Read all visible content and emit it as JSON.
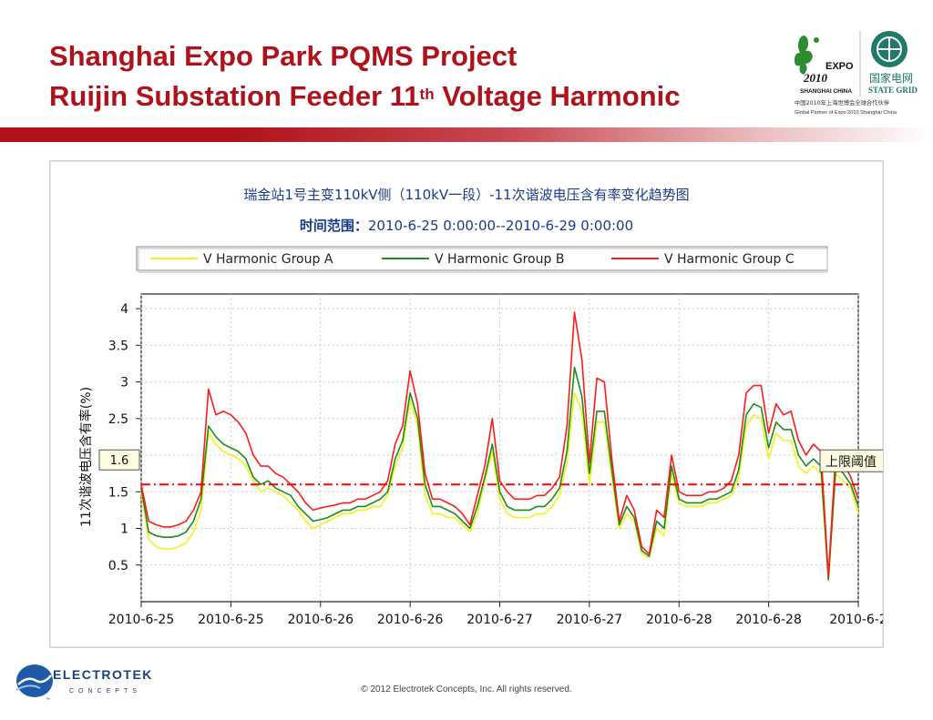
{
  "slide": {
    "title_line1": "Shanghai Expo Park PQMS Project",
    "title_line2_pre": "Ruijin Substation Feeder 11",
    "title_line2_sup": "th",
    "title_line2_post": " Voltage Harmonic",
    "footer": "© 2012 Electrotek Concepts,  Inc. All rights reserved."
  },
  "logos": {
    "expo_word": "EXPO",
    "expo_year": "2010",
    "expo_city": "SHANGHAI CHINA",
    "state_grid_cn": "国家电网",
    "state_grid_en": "STATE GRID",
    "partner_cn": "中国2010年上海世博会全球合作伙伴",
    "partner_en": "Global Partner of Expo 2010 Shanghai China",
    "electrotek_name": "ELECTROTEK",
    "electrotek_sub": "CONCEPTS",
    "electrotek_tm": "™"
  },
  "colors": {
    "title_red": "#b0121b",
    "series_a": "#f2f21a",
    "series_b": "#1c8c1c",
    "series_c": "#ff1a1a",
    "threshold": "#ff0000"
  },
  "chart_data": {
    "type": "line",
    "title": "瑞金站1号主变110kV侧（110kV一段）-11次谐波电压含有率变化趋势图",
    "subtitle_label": "时间范围：",
    "subtitle_value": "2010-6-25 0:00:00--2010-6-29 0:00:00",
    "ylabel": "11次谐波电压含有率(%)",
    "xlabel": "",
    "ylim": [
      0,
      4.2
    ],
    "xlim": [
      0,
      96
    ],
    "yticks": [
      0.5,
      1,
      1.5,
      2,
      2.5,
      3,
      3.5,
      4
    ],
    "ytick_labels": [
      "0.5",
      "1",
      "1.5",
      "2",
      "2.5",
      "3",
      "3.5",
      "4"
    ],
    "xticks": [
      0,
      12,
      24,
      36,
      48,
      60,
      72,
      84,
      96
    ],
    "xtick_labels": [
      "2010-6-25",
      "2010-6-25",
      "2010-6-26",
      "2010-6-26",
      "2010-6-27",
      "2010-6-27",
      "2010-6-28",
      "2010-6-28",
      "2010-6-2"
    ],
    "grid": true,
    "legend_position": "top",
    "threshold": {
      "value": 1.6,
      "label": "1.6",
      "name": "上限阈值"
    },
    "x": [
      0,
      1,
      2,
      3,
      4,
      5,
      6,
      7,
      8,
      9,
      10,
      11,
      12,
      13,
      14,
      15,
      16,
      17,
      18,
      19,
      20,
      21,
      22,
      23,
      24,
      25,
      26,
      27,
      28,
      29,
      30,
      31,
      32,
      33,
      34,
      35,
      36,
      37,
      38,
      39,
      40,
      41,
      42,
      43,
      44,
      45,
      46,
      47,
      48,
      49,
      50,
      51,
      52,
      53,
      54,
      55,
      56,
      57,
      58,
      59,
      60,
      61,
      62,
      63,
      64,
      65,
      66,
      67,
      68,
      69,
      70,
      71,
      72,
      73,
      74,
      75,
      76,
      77,
      78,
      79,
      80,
      81,
      82,
      83,
      84,
      85,
      86,
      87,
      88,
      89,
      90,
      91,
      92,
      93,
      94,
      95,
      96
    ],
    "series": [
      {
        "name": "V Harmonic Group A",
        "color": "#f2f21a",
        "values": [
          1.5,
          0.85,
          0.75,
          0.72,
          0.72,
          0.75,
          0.8,
          0.95,
          1.25,
          2.3,
          2.15,
          2.05,
          2.0,
          1.95,
          1.85,
          1.65,
          1.5,
          1.55,
          1.5,
          1.45,
          1.35,
          1.25,
          1.1,
          1.0,
          1.05,
          1.1,
          1.15,
          1.2,
          1.2,
          1.25,
          1.25,
          1.3,
          1.3,
          1.45,
          1.85,
          2.1,
          2.75,
          2.4,
          1.45,
          1.2,
          1.2,
          1.15,
          1.15,
          1.05,
          0.95,
          1.2,
          1.65,
          2.05,
          1.4,
          1.2,
          1.15,
          1.15,
          1.15,
          1.2,
          1.2,
          1.3,
          1.45,
          1.9,
          2.85,
          2.6,
          1.6,
          2.45,
          2.45,
          1.7,
          1.0,
          1.2,
          1.1,
          0.65,
          0.6,
          1.0,
          0.9,
          1.75,
          1.35,
          1.3,
          1.3,
          1.3,
          1.35,
          1.35,
          1.4,
          1.45,
          1.7,
          2.4,
          2.55,
          2.5,
          1.95,
          2.3,
          2.2,
          2.2,
          1.85,
          1.75,
          1.85,
          1.75,
          0.3,
          1.75,
          1.65,
          1.55,
          1.2
        ]
      },
      {
        "name": "V Harmonic Group B",
        "color": "#1c8c1c",
        "values": [
          1.55,
          0.95,
          0.9,
          0.88,
          0.88,
          0.9,
          0.95,
          1.1,
          1.4,
          2.4,
          2.25,
          2.15,
          2.1,
          2.05,
          1.95,
          1.7,
          1.6,
          1.65,
          1.55,
          1.5,
          1.45,
          1.3,
          1.2,
          1.1,
          1.12,
          1.15,
          1.2,
          1.25,
          1.25,
          1.3,
          1.3,
          1.35,
          1.4,
          1.5,
          1.95,
          2.2,
          2.85,
          2.5,
          1.6,
          1.3,
          1.3,
          1.25,
          1.2,
          1.1,
          1.0,
          1.3,
          1.7,
          2.15,
          1.5,
          1.3,
          1.25,
          1.25,
          1.25,
          1.3,
          1.3,
          1.4,
          1.55,
          2.05,
          3.2,
          2.8,
          1.75,
          2.6,
          2.6,
          1.8,
          1.05,
          1.3,
          1.15,
          0.7,
          0.62,
          1.1,
          1.0,
          1.85,
          1.4,
          1.35,
          1.35,
          1.35,
          1.4,
          1.4,
          1.45,
          1.5,
          1.8,
          2.55,
          2.7,
          2.65,
          2.1,
          2.45,
          2.35,
          2.35,
          2.0,
          1.85,
          1.95,
          1.85,
          0.3,
          1.85,
          1.75,
          1.6,
          1.3
        ]
      },
      {
        "name": "V Harmonic Group C",
        "color": "#ff1a1a",
        "values": [
          1.6,
          1.1,
          1.05,
          1.02,
          1.02,
          1.05,
          1.1,
          1.25,
          1.5,
          2.9,
          2.55,
          2.6,
          2.55,
          2.45,
          2.3,
          2.0,
          1.85,
          1.85,
          1.75,
          1.7,
          1.6,
          1.5,
          1.35,
          1.25,
          1.28,
          1.3,
          1.32,
          1.35,
          1.35,
          1.4,
          1.4,
          1.45,
          1.5,
          1.65,
          2.15,
          2.4,
          3.15,
          2.7,
          1.75,
          1.4,
          1.4,
          1.35,
          1.3,
          1.2,
          1.05,
          1.45,
          1.85,
          2.5,
          1.65,
          1.5,
          1.4,
          1.4,
          1.4,
          1.45,
          1.45,
          1.55,
          1.7,
          2.4,
          3.95,
          3.3,
          1.9,
          3.05,
          3.0,
          1.95,
          1.1,
          1.45,
          1.25,
          0.75,
          0.65,
          1.25,
          1.15,
          2.0,
          1.5,
          1.45,
          1.45,
          1.45,
          1.5,
          1.5,
          1.55,
          1.65,
          2.0,
          2.85,
          2.95,
          2.95,
          2.3,
          2.7,
          2.55,
          2.6,
          2.2,
          2.0,
          2.15,
          2.05,
          0.35,
          2.05,
          1.9,
          1.7,
          1.4
        ]
      }
    ]
  }
}
